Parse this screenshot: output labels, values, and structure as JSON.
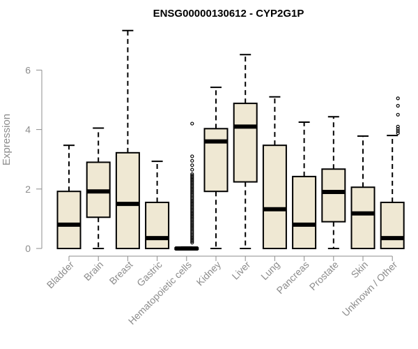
{
  "chart_data": {
    "type": "boxplot",
    "title": "ENSG00000130612 - CYP2G1P",
    "ylabel": "Expression",
    "xlabel": "",
    "ylim": [
      0,
      7.3
    ],
    "yticks": [
      0,
      2,
      4,
      6
    ],
    "box_fill": "#efe8d3",
    "categories": [
      "Bladder",
      "Brain",
      "Breast",
      "Gastric",
      "Hematopoietic cells",
      "Kidney",
      "Liver",
      "Lung",
      "Pancreas",
      "Prostate",
      "Skin",
      "Unknown / Other"
    ],
    "boxes": [
      {
        "name": "Bladder",
        "whisker_low": 0,
        "q1": 0,
        "median": 0.8,
        "q3": 1.92,
        "whisker_high": 3.47,
        "outliers": []
      },
      {
        "name": "Brain",
        "whisker_low": 0,
        "q1": 1.05,
        "median": 1.92,
        "q3": 2.9,
        "whisker_high": 4.05,
        "outliers": []
      },
      {
        "name": "Breast",
        "whisker_low": 0,
        "q1": 0,
        "median": 1.5,
        "q3": 3.22,
        "whisker_high": 7.33,
        "outliers": []
      },
      {
        "name": "Gastric",
        "whisker_low": 0,
        "q1": 0,
        "median": 0.35,
        "q3": 1.55,
        "whisker_high": 2.93,
        "outliers": []
      },
      {
        "name": "Hematopoietic cells",
        "whisker_low": 0,
        "q1": 0,
        "median": 0,
        "q3": 0.02,
        "whisker_high": 0.05,
        "outliers": [
          0.2,
          0.25,
          0.3,
          0.35,
          0.4,
          0.45,
          0.5,
          0.55,
          0.6,
          0.65,
          0.7,
          0.75,
          0.8,
          0.85,
          0.9,
          0.95,
          1.0,
          1.05,
          1.1,
          1.15,
          1.2,
          1.25,
          1.3,
          1.35,
          1.4,
          1.45,
          1.5,
          1.55,
          1.6,
          1.65,
          1.7,
          1.75,
          1.8,
          1.85,
          1.9,
          1.95,
          2.0,
          2.05,
          2.1,
          2.15,
          2.2,
          2.25,
          2.3,
          2.35,
          2.4,
          2.45,
          2.5,
          2.65,
          2.8,
          2.95,
          3.1,
          4.2
        ]
      },
      {
        "name": "Kidney",
        "whisker_low": 0,
        "q1": 1.92,
        "median": 3.6,
        "q3": 4.03,
        "whisker_high": 5.42,
        "outliers": []
      },
      {
        "name": "Liver",
        "whisker_low": 0,
        "q1": 2.24,
        "median": 4.1,
        "q3": 4.88,
        "whisker_high": 6.52,
        "outliers": []
      },
      {
        "name": "Lung",
        "whisker_low": 0,
        "q1": 0,
        "median": 1.32,
        "q3": 3.47,
        "whisker_high": 5.1,
        "outliers": []
      },
      {
        "name": "Pancreas",
        "whisker_low": 0,
        "q1": 0,
        "median": 0.8,
        "q3": 2.42,
        "whisker_high": 4.25,
        "outliers": []
      },
      {
        "name": "Prostate",
        "whisker_low": 0,
        "q1": 0.9,
        "median": 1.9,
        "q3": 2.67,
        "whisker_high": 4.43,
        "outliers": []
      },
      {
        "name": "Skin",
        "whisker_low": 0,
        "q1": 0,
        "median": 1.18,
        "q3": 2.06,
        "whisker_high": 3.78,
        "outliers": []
      },
      {
        "name": "Unknown / Other",
        "whisker_low": 0,
        "q1": 0,
        "median": 0.35,
        "q3": 1.55,
        "whisker_high": 3.8,
        "outliers": [
          3.88,
          3.95,
          4.02,
          4.1,
          4.5,
          4.8,
          5.05
        ]
      }
    ]
  }
}
